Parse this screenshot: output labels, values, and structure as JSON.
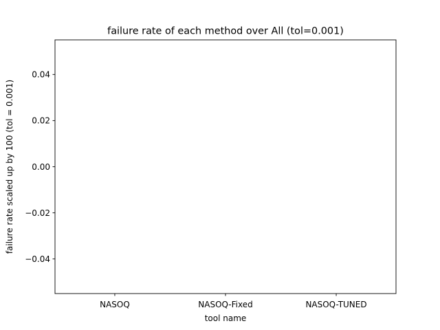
{
  "chart_data": {
    "type": "bar",
    "title": "failure rate of each method over All (tol=0.001)",
    "xlabel": "tool name",
    "ylabel": "failure rate scaled up by 100 (tol = 0.001)",
    "categories": [
      "NASOQ",
      "NASOQ-Fixed",
      "NASOQ-TUNED"
    ],
    "values": [
      0,
      0,
      0
    ],
    "ylim": [
      -0.055,
      0.055
    ],
    "yticks": [
      -0.04,
      -0.02,
      0.0,
      0.02,
      0.04
    ],
    "ytick_labels": [
      "−0.04",
      "−0.02",
      "0.00",
      "0.02",
      "0.04"
    ],
    "grid": false,
    "legend": "none",
    "colors": {
      "frame": "#000000",
      "background": "#ffffff",
      "bar": "#1f77b4"
    }
  }
}
